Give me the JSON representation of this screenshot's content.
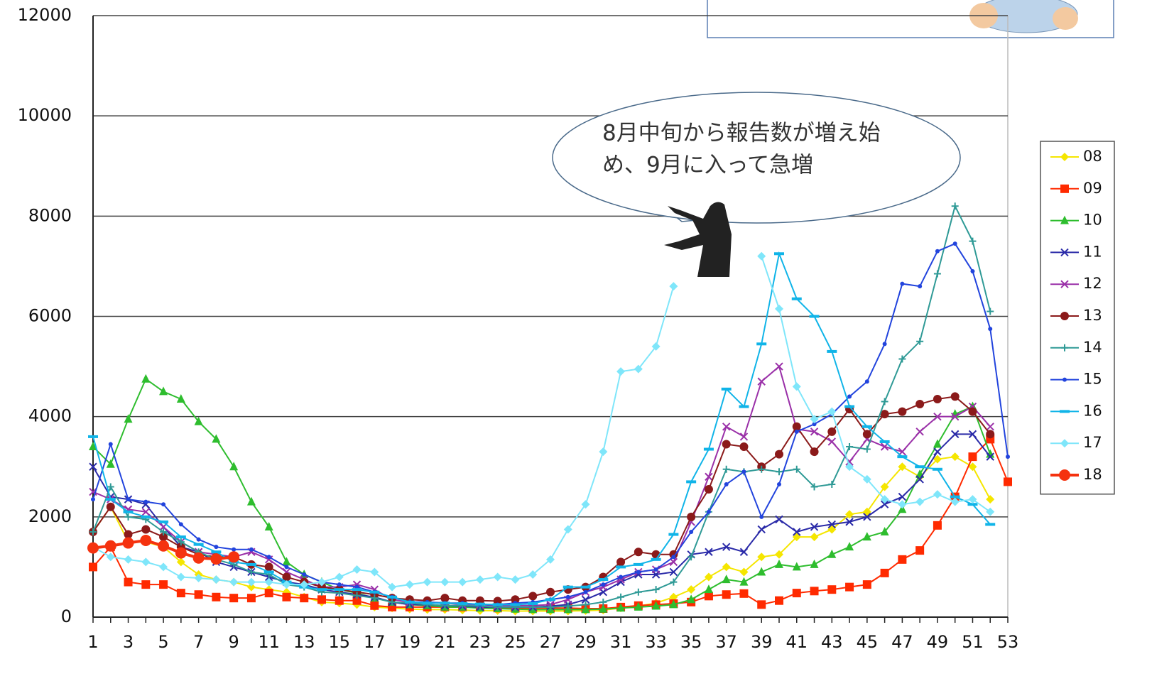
{
  "chart_data": {
    "type": "line",
    "x": [
      1,
      2,
      3,
      4,
      5,
      6,
      7,
      8,
      9,
      10,
      11,
      12,
      13,
      14,
      15,
      16,
      17,
      18,
      19,
      20,
      21,
      22,
      23,
      24,
      25,
      26,
      27,
      28,
      29,
      30,
      31,
      32,
      33,
      34,
      35,
      36,
      37,
      38,
      39,
      40,
      41,
      42,
      43,
      44,
      45,
      46,
      47,
      48,
      49,
      50,
      51,
      52,
      53
    ],
    "xlim": [
      1,
      53
    ],
    "xticks": [
      1,
      3,
      5,
      7,
      9,
      11,
      13,
      15,
      17,
      19,
      21,
      23,
      25,
      27,
      29,
      31,
      33,
      35,
      37,
      39,
      41,
      43,
      45,
      47,
      49,
      51,
      53
    ],
    "ylim": [
      0,
      12000
    ],
    "yticks": [
      0,
      2000,
      4000,
      6000,
      8000,
      10000,
      12000
    ],
    "grid": true,
    "legend": "right",
    "annotation": [
      "8月中旬から報告数が増え始",
      "め、9月に入って急増"
    ],
    "series": [
      {
        "name": "08",
        "color": "#f5e600",
        "marker": "diamond",
        "values": [
          1700,
          2200,
          1500,
          1500,
          1400,
          1100,
          850,
          750,
          700,
          600,
          550,
          500,
          400,
          300,
          280,
          250,
          200,
          180,
          160,
          150,
          150,
          140,
          130,
          130,
          120,
          120,
          120,
          120,
          130,
          140,
          180,
          220,
          280,
          400,
          550,
          800,
          1000,
          900,
          1200,
          1250,
          1600,
          1600,
          1750,
          2050,
          2100,
          2600,
          3000,
          2800,
          3150,
          3200,
          3000,
          2350,
          null
        ]
      },
      {
        "name": "09",
        "color": "#ff2a00",
        "marker": "square",
        "values": [
          1000,
          1400,
          700,
          650,
          650,
          480,
          450,
          400,
          380,
          380,
          480,
          400,
          380,
          350,
          330,
          330,
          230,
          200,
          200,
          200,
          200,
          200,
          200,
          180,
          180,
          180,
          180,
          180,
          170,
          170,
          200,
          230,
          250,
          270,
          300,
          420,
          450,
          470,
          250,
          330,
          480,
          520,
          550,
          600,
          650,
          880,
          1150,
          1330,
          1830,
          2400,
          3200,
          3550,
          2700
        ]
      },
      {
        "name": "10",
        "color": "#2ebd2e",
        "marker": "triangle",
        "values": [
          3400,
          3050,
          3950,
          4750,
          4500,
          4350,
          3900,
          3550,
          3000,
          2300,
          1800,
          1100,
          850,
          700,
          550,
          480,
          380,
          300,
          250,
          230,
          200,
          200,
          180,
          170,
          160,
          150,
          150,
          150,
          150,
          160,
          180,
          200,
          220,
          250,
          350,
          550,
          750,
          700,
          900,
          1050,
          1000,
          1050,
          1250,
          1400,
          1600,
          1700,
          2150,
          2850,
          3450,
          4050,
          4200,
          3250,
          null
        ]
      },
      {
        "name": "11",
        "color": "#2a2aa8",
        "marker": "cross",
        "values": [
          3000,
          2400,
          2350,
          2250,
          1800,
          1400,
          1300,
          1100,
          1000,
          900,
          800,
          700,
          650,
          550,
          500,
          450,
          400,
          300,
          250,
          250,
          230,
          220,
          200,
          200,
          200,
          200,
          220,
          250,
          350,
          500,
          700,
          850,
          850,
          900,
          1250,
          1300,
          1400,
          1300,
          1750,
          1950,
          1700,
          1800,
          1850,
          1900,
          2000,
          2250,
          2400,
          2750,
          3300,
          3650,
          3650,
          3200,
          null
        ]
      },
      {
        "name": "12",
        "color": "#9a30a8",
        "marker": "cross",
        "values": [
          2500,
          2350,
          2150,
          2100,
          1800,
          1500,
          1300,
          1250,
          1200,
          1300,
          1150,
          900,
          750,
          600,
          600,
          650,
          550,
          350,
          300,
          300,
          280,
          250,
          250,
          230,
          230,
          230,
          250,
          350,
          500,
          600,
          750,
          900,
          950,
          1100,
          1900,
          2800,
          3800,
          3600,
          4700,
          5000,
          3750,
          3700,
          3500,
          3100,
          3550,
          3400,
          3300,
          3700,
          4000,
          4000,
          4200,
          3800,
          null
        ]
      },
      {
        "name": "13",
        "color": "#8b1a1a",
        "marker": "circle",
        "values": [
          1700,
          2200,
          1650,
          1750,
          1600,
          1400,
          1250,
          1200,
          1200,
          1050,
          1000,
          800,
          700,
          600,
          550,
          500,
          450,
          380,
          350,
          330,
          380,
          330,
          330,
          320,
          350,
          420,
          500,
          550,
          600,
          800,
          1100,
          1300,
          1250,
          1250,
          2000,
          2550,
          3450,
          3400,
          3000,
          3250,
          3800,
          3300,
          3700,
          4150,
          3650,
          4050,
          4100,
          4250,
          4350,
          4400,
          4100,
          3650,
          null
        ]
      },
      {
        "name": "14",
        "color": "#2f9a96",
        "marker": "plus",
        "values": [
          1700,
          2600,
          2000,
          1950,
          1700,
          1500,
          1300,
          1150,
          1050,
          900,
          850,
          650,
          600,
          500,
          480,
          430,
          380,
          300,
          280,
          250,
          230,
          230,
          220,
          200,
          200,
          200,
          200,
          220,
          250,
          300,
          400,
          500,
          550,
          700,
          1200,
          2100,
          2950,
          2900,
          2950,
          2900,
          2950,
          2600,
          2650,
          3400,
          3350,
          4300,
          5150,
          5500,
          6850,
          8200,
          7500,
          6100,
          null
        ]
      },
      {
        "name": "15",
        "color": "#2244dd",
        "marker": "dot",
        "values": [
          2350,
          3450,
          2350,
          2300,
          2250,
          1850,
          1550,
          1400,
          1350,
          1350,
          1200,
          1000,
          850,
          700,
          650,
          600,
          500,
          400,
          300,
          300,
          280,
          280,
          250,
          250,
          280,
          300,
          350,
          400,
          500,
          650,
          800,
          900,
          950,
          1200,
          1700,
          2100,
          2650,
          2900,
          2000,
          2650,
          3700,
          3850,
          4050,
          4400,
          4700,
          5450,
          6650,
          6600,
          7300,
          7450,
          6900,
          5750,
          3200
        ]
      },
      {
        "name": "16",
        "color": "#10b4e8",
        "marker": "dash",
        "values": [
          3600,
          2350,
          2100,
          2000,
          1900,
          1600,
          1450,
          1300,
          1100,
          1050,
          900,
          700,
          600,
          550,
          550,
          550,
          500,
          400,
          300,
          280,
          280,
          270,
          260,
          250,
          250,
          270,
          350,
          600,
          600,
          750,
          1000,
          1050,
          1150,
          1650,
          2700,
          3350,
          4550,
          4200,
          5450,
          7250,
          6350,
          6000,
          5300,
          4200,
          3800,
          3500,
          3200,
          3000,
          2950,
          2400,
          2250,
          1850,
          null
        ]
      },
      {
        "name": "17",
        "color": "#7fe6fa",
        "marker": "diamond",
        "values": [
          1400,
          1200,
          1150,
          1100,
          1000,
          800,
          780,
          750,
          700,
          700,
          700,
          650,
          650,
          700,
          800,
          950,
          900,
          600,
          650,
          700,
          700,
          700,
          750,
          800,
          750,
          850,
          1150,
          1750,
          2250,
          3300,
          4900,
          4950,
          5400,
          6600,
          null,
          null,
          null,
          null,
          7200,
          6150,
          4600,
          3950,
          4100,
          3000,
          2750,
          2350,
          2250,
          2300,
          2450,
          2300,
          2350,
          2100,
          null
        ]
      },
      {
        "name": "18",
        "color": "#f5320f",
        "marker": "bigcircle",
        "values": [
          1380,
          1420,
          1480,
          1530,
          1420,
          1280,
          1180,
          1160,
          1200,
          null,
          null,
          null,
          null,
          null,
          null,
          null,
          null,
          null,
          null,
          null,
          null,
          null,
          null,
          null,
          null,
          null,
          null,
          null,
          null,
          null,
          null,
          null,
          null,
          null,
          null,
          null,
          null,
          null,
          null,
          null,
          null,
          null,
          null,
          null,
          null,
          null,
          null,
          null,
          null,
          null,
          null,
          null,
          null
        ]
      }
    ]
  }
}
